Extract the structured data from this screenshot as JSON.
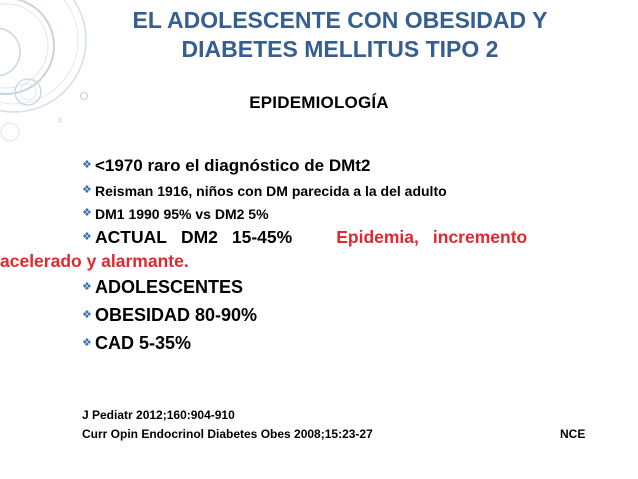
{
  "slide": {
    "title_line1": "EL ADOLESCENTE CON OBESIDAD Y",
    "title_line2": "DIABETES MELLITUS TIPO 2",
    "subtitle": "EPIDEMIOLOGÍA",
    "bullet_symbol": "❖",
    "bullets": [
      "<1970 raro el diagnóstico de DMt2",
      "Reisman 1916, niños con DM parecida a la del adulto",
      "DM1 1990 95% vs DM2 5%",
      {
        "part_actual": "ACTUAL",
        "part_dm2": "DM2",
        "part_pct": "15-45%",
        "red_epidemia": "Epidemia,",
        "red_incremento": "incremento",
        "red_line2": "acelerado y alarmante."
      },
      "ADOLESCENTES",
      "OBESIDAD 80-90%",
      "CAD 5-35%"
    ],
    "references": [
      "J Pediatr 2012;160:904-910",
      "Curr Opin Endocrinol Diabetes Obes 2008;15:23-27"
    ],
    "author": "NCE"
  },
  "colors": {
    "title": "#365f91",
    "accent_red": "#e0282e",
    "bullet_symbol": "#3a6fb0",
    "decoration": "#c9d3de"
  }
}
